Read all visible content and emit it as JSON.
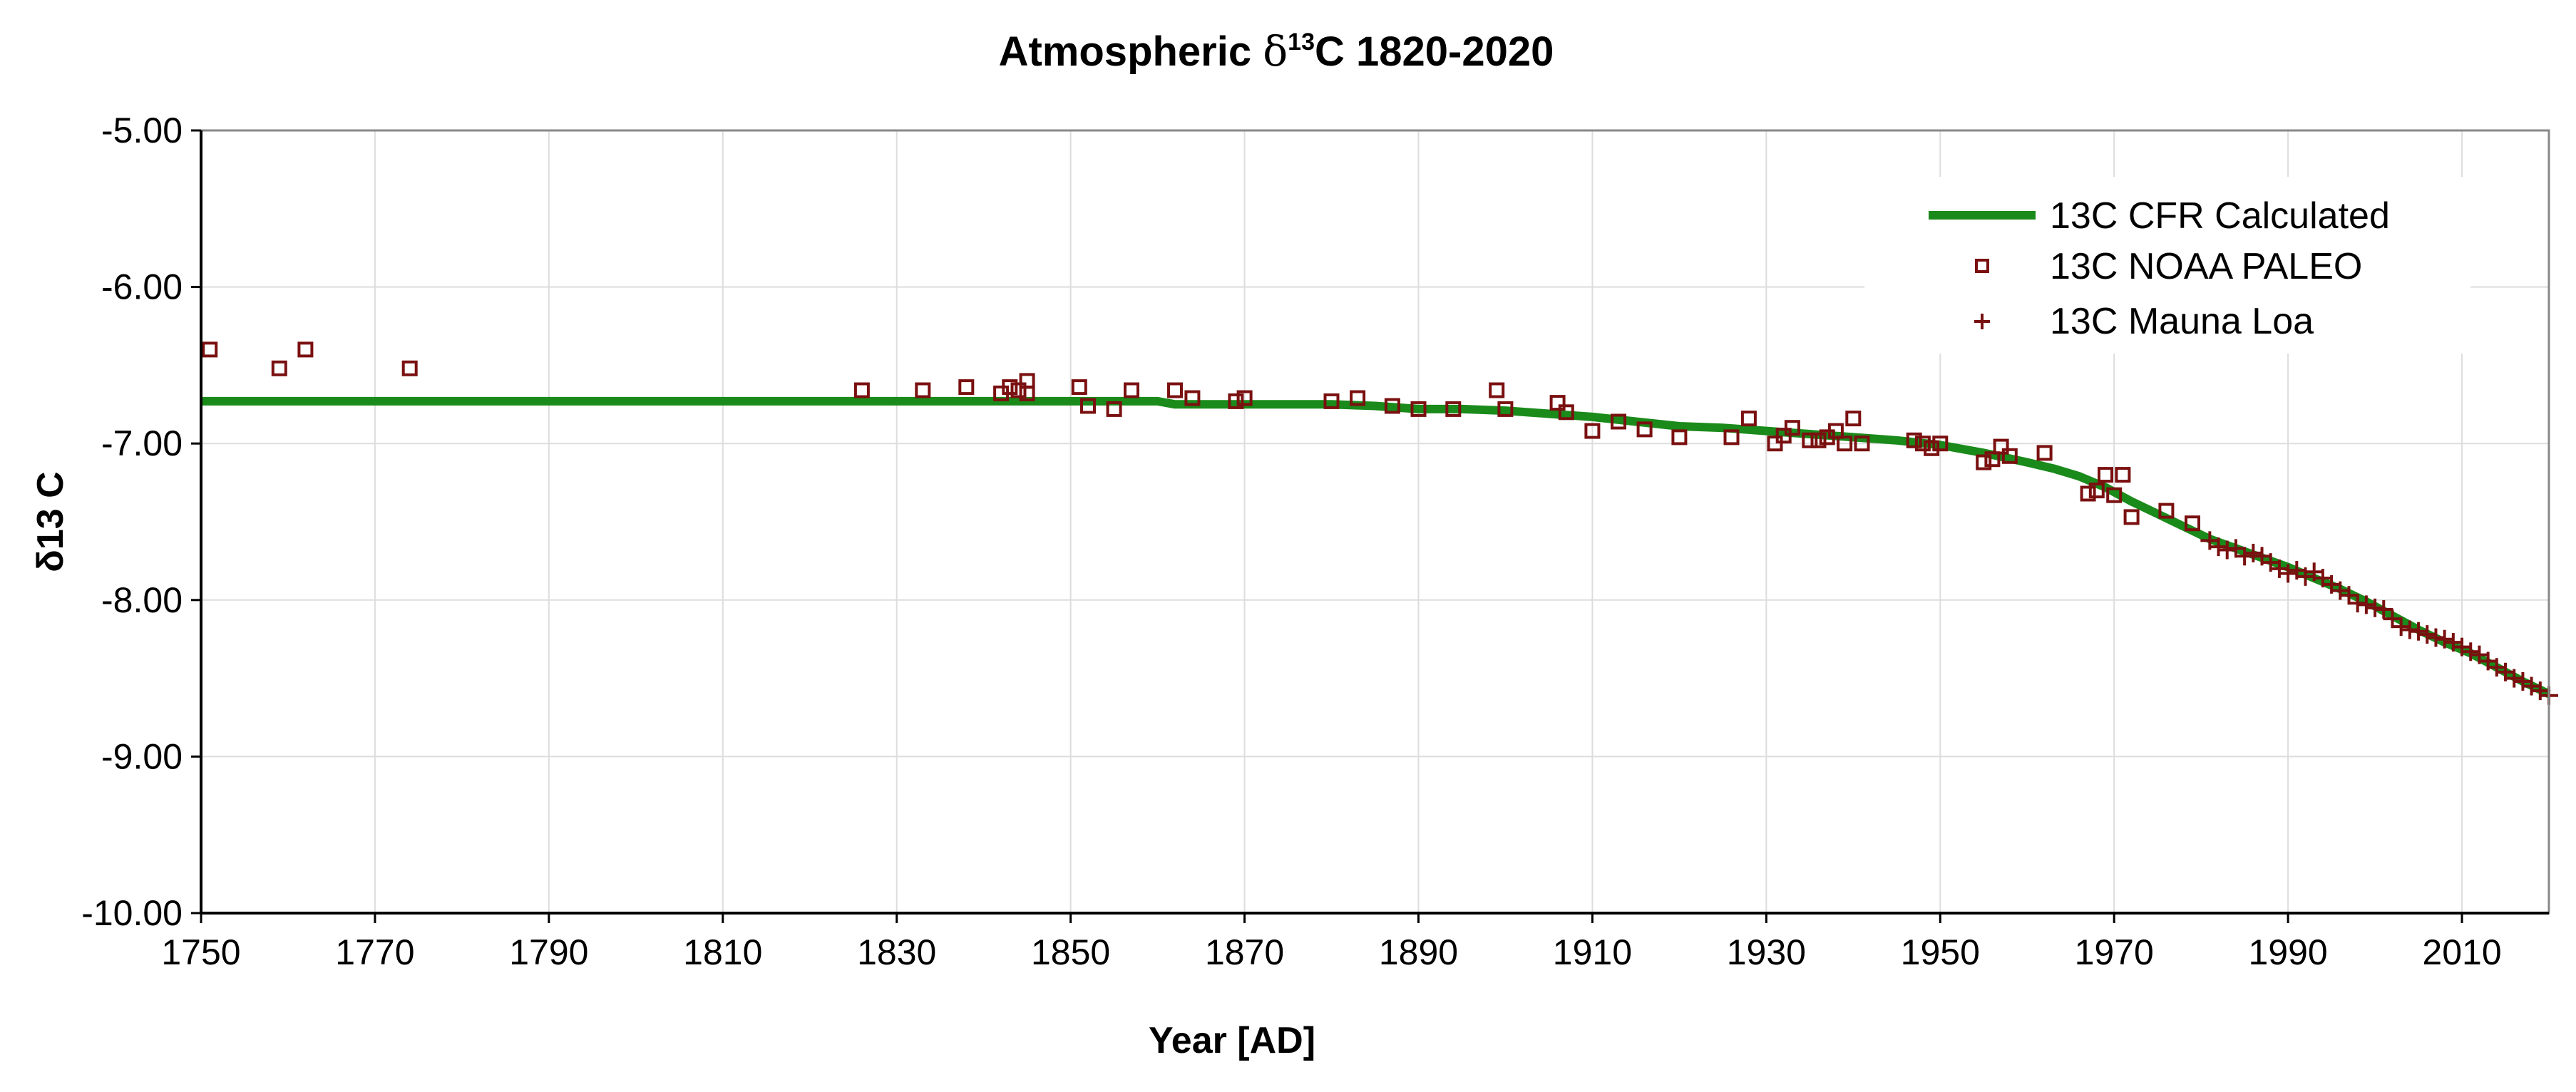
{
  "chart_data": {
    "type": "scatter",
    "title": {
      "prefix": "Atmospheric ",
      "symbol": "δ",
      "superscript": "13",
      "suffix": "C 1820-2020"
    },
    "xlabel": "Year [AD]",
    "ylabel": "δ13 C",
    "xlim": [
      1750,
      2020
    ],
    "ylim": [
      -10,
      -5
    ],
    "x_ticks": [
      1750,
      1770,
      1790,
      1810,
      1830,
      1850,
      1870,
      1890,
      1910,
      1930,
      1950,
      1970,
      1990,
      2010
    ],
    "x_tick_labels": [
      "1750",
      "1770",
      "1790",
      "1810",
      "1830",
      "1850",
      "1870",
      "1890",
      "1910",
      "1930",
      "1950",
      "1970",
      "1990",
      "2010"
    ],
    "y_ticks": [
      -5,
      -6,
      -7,
      -8,
      -9,
      -10
    ],
    "y_tick_labels": [
      "-5.00",
      "-6.00",
      "-7.00",
      "-8.00",
      "-9.00",
      "-10.00"
    ],
    "grid": true,
    "legend_position": "top-right",
    "colors": {
      "calculated": "#1a8a1a",
      "paleo": "#7a1010",
      "mauna_loa": "#7a1010",
      "grid": "#dddddd",
      "frame": "#888888"
    },
    "series": [
      {
        "name": "13C CFR Calculated",
        "kind": "line",
        "x": [
          1750,
          1860,
          1862,
          1870,
          1880,
          1885,
          1890,
          1895,
          1900,
          1905,
          1910,
          1915,
          1920,
          1925,
          1930,
          1935,
          1940,
          1945,
          1950,
          1955,
          1960,
          1963,
          1966,
          1969,
          1972,
          1975,
          1978,
          1981,
          1984,
          1987,
          1990,
          1993,
          1996,
          1999,
          2002,
          2005,
          2008,
          2011,
          2014,
          2017,
          2020
        ],
        "y": [
          -6.73,
          -6.73,
          -6.75,
          -6.75,
          -6.75,
          -6.76,
          -6.78,
          -6.78,
          -6.79,
          -6.81,
          -6.83,
          -6.86,
          -6.89,
          -6.9,
          -6.92,
          -6.94,
          -6.96,
          -6.98,
          -7.01,
          -7.06,
          -7.12,
          -7.16,
          -7.21,
          -7.28,
          -7.37,
          -7.45,
          -7.53,
          -7.61,
          -7.67,
          -7.73,
          -7.79,
          -7.86,
          -7.93,
          -8.01,
          -8.1,
          -8.19,
          -8.27,
          -8.34,
          -8.43,
          -8.52,
          -8.6
        ]
      },
      {
        "name": "13C NOAA PALEO",
        "kind": "square",
        "x": [
          1751,
          1759,
          1762,
          1774,
          1826,
          1833,
          1838,
          1842,
          1843,
          1844,
          1845,
          1845,
          1851,
          1852,
          1855,
          1857,
          1862,
          1864,
          1869,
          1870,
          1880,
          1883,
          1887,
          1890,
          1894,
          1899,
          1900,
          1906,
          1907,
          1910,
          1913,
          1916,
          1920,
          1926,
          1928,
          1931,
          1932,
          1933,
          1935,
          1936,
          1937,
          1938,
          1939,
          1940,
          1941,
          1947,
          1948,
          1949,
          1950,
          1955,
          1956,
          1957,
          1958,
          1962,
          1967,
          1968,
          1969,
          1970,
          1971,
          1972,
          1976,
          1979
        ],
        "y": [
          -6.4,
          -6.52,
          -6.4,
          -6.52,
          -6.66,
          -6.66,
          -6.64,
          -6.68,
          -6.64,
          -6.66,
          -6.6,
          -6.68,
          -6.64,
          -6.76,
          -6.78,
          -6.66,
          -6.66,
          -6.71,
          -6.73,
          -6.71,
          -6.73,
          -6.71,
          -6.76,
          -6.78,
          -6.78,
          -6.66,
          -6.78,
          -6.74,
          -6.8,
          -6.92,
          -6.86,
          -6.91,
          -6.96,
          -6.96,
          -6.84,
          -7.0,
          -6.95,
          -6.9,
          -6.98,
          -6.98,
          -6.96,
          -6.92,
          -7.0,
          -6.84,
          -7.0,
          -6.98,
          -7.0,
          -7.03,
          -7.0,
          -7.12,
          -7.1,
          -7.02,
          -7.08,
          -7.06,
          -7.32,
          -7.3,
          -7.2,
          -7.33,
          -7.2,
          -7.47,
          -7.43,
          -7.51
        ]
      },
      {
        "name": "13C Mauna Loa",
        "kind": "plus",
        "x": [
          1981,
          1982,
          1983,
          1984,
          1985,
          1986,
          1987,
          1988,
          1989,
          1990,
          1991,
          1992,
          1993,
          1994,
          1995,
          1996,
          1997,
          1998,
          1999,
          2000,
          2001,
          2002,
          2003,
          2004,
          2005,
          2006,
          2007,
          2008,
          2009,
          2010,
          2011,
          2012,
          2013,
          2014,
          2015,
          2016,
          2017,
          2018,
          2019,
          2020
        ],
        "y": [
          -7.62,
          -7.66,
          -7.68,
          -7.67,
          -7.72,
          -7.7,
          -7.72,
          -7.76,
          -7.8,
          -7.83,
          -7.81,
          -7.85,
          -7.82,
          -7.86,
          -7.9,
          -7.94,
          -7.97,
          -8.02,
          -8.03,
          -8.05,
          -8.06,
          -8.12,
          -8.17,
          -8.19,
          -8.2,
          -8.22,
          -8.24,
          -8.25,
          -8.27,
          -8.3,
          -8.33,
          -8.35,
          -8.39,
          -8.43,
          -8.46,
          -8.5,
          -8.52,
          -8.55,
          -8.58,
          -8.61
        ]
      }
    ],
    "legend": {
      "entries": [
        "13C CFR Calculated",
        "13C NOAA PALEO",
        "13C Mauna Loa"
      ]
    }
  }
}
